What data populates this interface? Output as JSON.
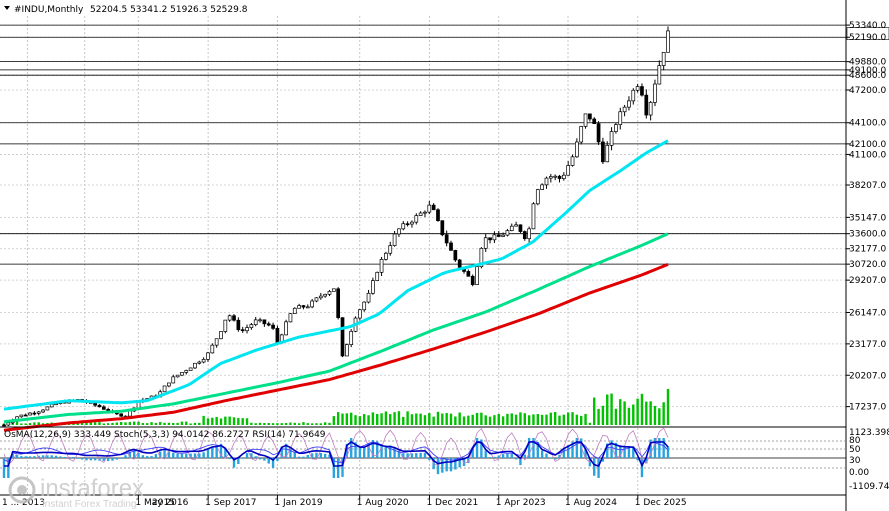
{
  "header": {
    "symbol": "#INDU,Monthly",
    "ohlc": "52204.5 53341.2 51926.3 52529.8"
  },
  "indicator_header": "OsMA(12,26,9) 333.449  Stoch(5,3,3) 94.0142 86.2727  RSI(14) 71.9649",
  "watermark": {
    "brand": "instaforex",
    "tagline": "Instant Forex Trading"
  },
  "colors": {
    "up_candle": "#000000",
    "ma_cyan": "#00e5f0",
    "ma_green": "#00e08a",
    "ma_red": "#e00000",
    "volume": "#00c000",
    "osma_hist": "#29a3e0",
    "signal_line": "#0000c0",
    "stoch_line": "#c080c0",
    "rsi_line": "#4040ff",
    "grid": "#c8c8c8"
  },
  "chart_data": {
    "type": "candlestick",
    "ylim": [
      15500,
      54200
    ],
    "y_ticks": [
      53340,
      52190,
      49880,
      49100,
      48600,
      47200,
      44100,
      42100,
      41100,
      38207,
      35147,
      33600,
      32177,
      30720,
      29207,
      26147,
      23177,
      20207,
      17237
    ],
    "level_lines": [
      53340,
      52190,
      49880,
      49100,
      48600,
      44100,
      42100,
      33600,
      30720
    ],
    "x_ticks": [
      "1 May 2016",
      "1 Sep 2017",
      "1 Jan 2019",
      "1 Aug 2020",
      "1 Dec 2021",
      "1 Apr 2023",
      "1 Aug 2024",
      "1 Dec 2025"
    ],
    "x_ticks_partial_left": [
      "1 ... 2013",
      "2015"
    ],
    "price_path": [
      [
        2013.75,
        15500
      ],
      [
        2014.0,
        16300
      ],
      [
        2014.4,
        16800
      ],
      [
        2014.8,
        17600
      ],
      [
        2015.2,
        17900
      ],
      [
        2015.6,
        17200
      ],
      [
        2015.9,
        16500
      ],
      [
        2016.1,
        16400
      ],
      [
        2016.35,
        17800
      ],
      [
        2016.7,
        18300
      ],
      [
        2016.95,
        19800
      ],
      [
        2017.3,
        20900
      ],
      [
        2017.65,
        22100
      ],
      [
        2017.9,
        24300
      ],
      [
        2018.05,
        26100
      ],
      [
        2018.3,
        24300
      ],
      [
        2018.6,
        25400
      ],
      [
        2018.9,
        24800
      ],
      [
        2019.0,
        23300
      ],
      [
        2019.3,
        26500
      ],
      [
        2019.6,
        26800
      ],
      [
        2019.9,
        28000
      ],
      [
        2020.1,
        28500
      ],
      [
        2020.25,
        21900
      ],
      [
        2020.5,
        25800
      ],
      [
        2020.75,
        27800
      ],
      [
        2020.95,
        30600
      ],
      [
        2021.3,
        33900
      ],
      [
        2021.7,
        35300
      ],
      [
        2021.95,
        36300
      ],
      [
        2022.15,
        33800
      ],
      [
        2022.45,
        30800
      ],
      [
        2022.75,
        29000
      ],
      [
        2022.95,
        33100
      ],
      [
        2023.25,
        33300
      ],
      [
        2023.6,
        34400
      ],
      [
        2023.8,
        33000
      ],
      [
        2023.95,
        37700
      ],
      [
        2024.2,
        39100
      ],
      [
        2024.45,
        38800
      ],
      [
        2024.7,
        41200
      ],
      [
        2024.9,
        44800
      ],
      [
        2025.05,
        44500
      ],
      [
        2025.25,
        40700
      ],
      [
        2025.5,
        44100
      ],
      [
        2025.75,
        46400
      ],
      [
        2025.95,
        48100
      ],
      [
        2026.1,
        44800
      ],
      [
        2026.3,
        49000
      ],
      [
        2026.5,
        52500
      ]
    ],
    "ma_cyan": [
      [
        2013.75,
        17000
      ],
      [
        2015.0,
        17800
      ],
      [
        2016.0,
        17600
      ],
      [
        2016.5,
        17800
      ],
      [
        2017.3,
        19300
      ],
      [
        2017.9,
        21300
      ],
      [
        2018.6,
        22600
      ],
      [
        2019.4,
        23800
      ],
      [
        2020.4,
        24800
      ],
      [
        2020.95,
        26000
      ],
      [
        2021.5,
        28200
      ],
      [
        2022.2,
        29900
      ],
      [
        2023.3,
        31200
      ],
      [
        2023.9,
        32800
      ],
      [
        2024.5,
        35400
      ],
      [
        2025.0,
        37700
      ],
      [
        2025.6,
        39600
      ],
      [
        2026.1,
        41300
      ],
      [
        2026.5,
        42400
      ]
    ],
    "ma_green": [
      [
        2013.75,
        15800
      ],
      [
        2015.0,
        16500
      ],
      [
        2016.0,
        16800
      ],
      [
        2017.0,
        17500
      ],
      [
        2018.0,
        18500
      ],
      [
        2019.0,
        19500
      ],
      [
        2020.0,
        20600
      ],
      [
        2021.0,
        22500
      ],
      [
        2022.0,
        24500
      ],
      [
        2023.0,
        26200
      ],
      [
        2024.0,
        28300
      ],
      [
        2025.0,
        30500
      ],
      [
        2026.0,
        32500
      ],
      [
        2026.5,
        33600
      ]
    ],
    "ma_red": [
      [
        2013.75,
        15000
      ],
      [
        2015.0,
        15700
      ],
      [
        2016.0,
        16100
      ],
      [
        2017.0,
        16700
      ],
      [
        2018.0,
        17800
      ],
      [
        2019.0,
        18800
      ],
      [
        2020.0,
        19800
      ],
      [
        2021.0,
        21200
      ],
      [
        2022.0,
        22700
      ],
      [
        2023.0,
        24300
      ],
      [
        2024.0,
        26000
      ],
      [
        2025.0,
        28000
      ],
      [
        2026.0,
        29700
      ],
      [
        2026.5,
        30700
      ]
    ],
    "indicator_ticks": [
      "1123.398",
      "80",
      "50",
      "30",
      "0.00",
      "-1109.741"
    ]
  }
}
